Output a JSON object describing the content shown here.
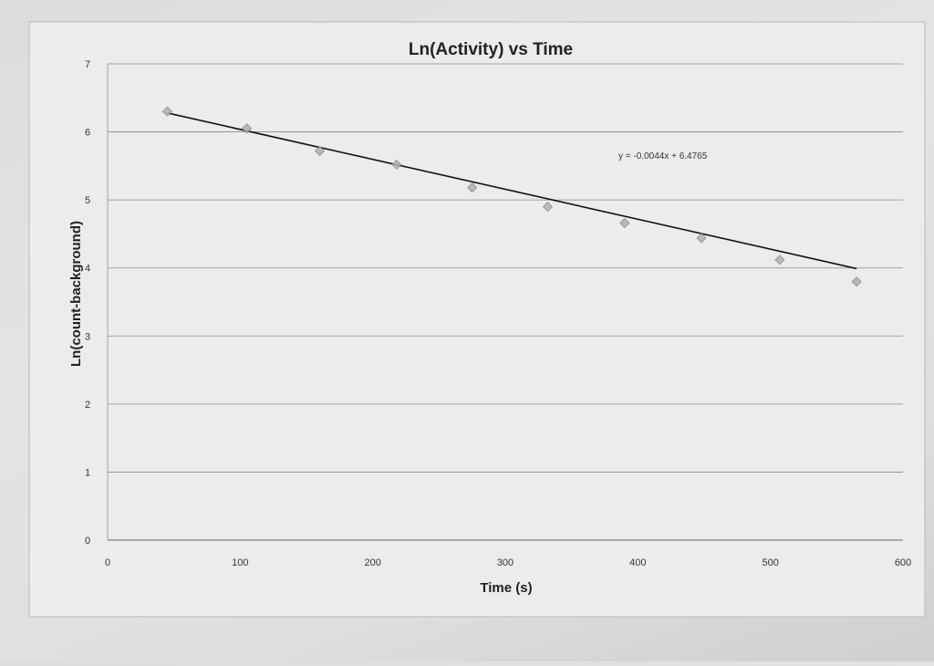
{
  "chart_data": {
    "type": "scatter",
    "title": "Ln(Activity) vs Time",
    "xlabel": "Time (s)",
    "ylabel": "Ln(count-background)",
    "xlim": [
      0,
      600
    ],
    "ylim": [
      0,
      7
    ],
    "xticks": [
      0,
      100,
      200,
      300,
      400,
      500,
      600
    ],
    "yticks": [
      0,
      1,
      2,
      3,
      4,
      5,
      6,
      7
    ],
    "grid": "horizontal",
    "series": [
      {
        "x": [
          45,
          105,
          160,
          218,
          275,
          332,
          390,
          448,
          507,
          565
        ],
        "y": [
          6.3,
          6.05,
          5.72,
          5.52,
          5.18,
          4.9,
          4.66,
          4.44,
          4.12,
          3.8
        ],
        "marker": "diamond",
        "color": "#b0b0b0"
      }
    ],
    "trendline": {
      "type": "linear",
      "slope": -0.0044,
      "intercept": 6.4765,
      "x_range": [
        45,
        565
      ],
      "color": "#111111",
      "equation_label": "y = -0.0044x + 6.4765"
    }
  }
}
